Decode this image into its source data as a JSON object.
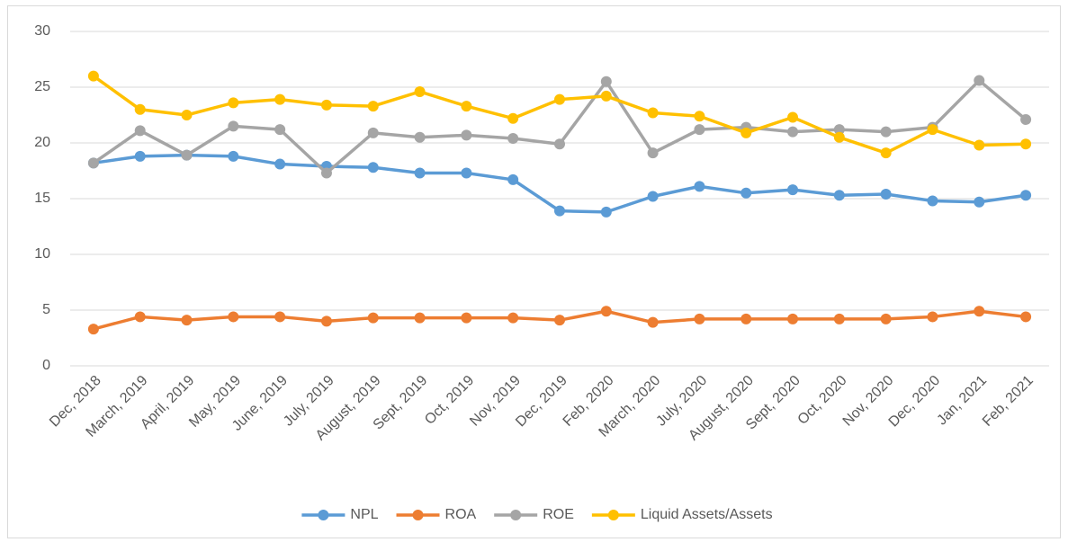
{
  "chart_data": {
    "type": "line",
    "categories": [
      "Dec, 2018",
      "March, 2019",
      "April, 2019",
      "May, 2019",
      "June, 2019",
      "July, 2019",
      "August, 2019",
      "Sept, 2019",
      "Oct, 2019",
      "Nov, 2019",
      "Dec, 2019",
      "Feb, 2020",
      "March, 2020",
      "July, 2020",
      "August, 2020",
      "Sept, 2020",
      "Oct, 2020",
      "Nov, 2020",
      "Dec, 2020",
      "Jan, 2021",
      "Feb, 2021"
    ],
    "series": [
      {
        "name": "NPL",
        "color": "#5b9bd5",
        "values": [
          18.2,
          18.8,
          18.9,
          18.8,
          18.1,
          17.9,
          17.8,
          17.3,
          17.3,
          16.7,
          13.9,
          13.8,
          15.2,
          16.1,
          15.5,
          15.8,
          15.3,
          15.4,
          14.8,
          14.7,
          15.3
        ]
      },
      {
        "name": "ROA",
        "color": "#ed7d31",
        "values": [
          3.3,
          4.4,
          4.1,
          4.4,
          4.4,
          4.0,
          4.3,
          4.3,
          4.3,
          4.3,
          4.1,
          4.9,
          3.9,
          4.2,
          4.2,
          4.2,
          4.2,
          4.2,
          4.4,
          4.9,
          4.4
        ]
      },
      {
        "name": "ROE",
        "color": "#a5a5a5",
        "values": [
          18.2,
          21.1,
          18.9,
          21.5,
          21.2,
          17.3,
          20.9,
          20.5,
          20.7,
          20.4,
          19.9,
          25.5,
          19.1,
          21.2,
          21.4,
          21.0,
          21.2,
          21.0,
          21.4,
          25.6,
          22.1
        ]
      },
      {
        "name": "Liquid Assets/Assets",
        "color": "#ffc000",
        "values": [
          26.0,
          23.0,
          22.5,
          23.6,
          23.9,
          23.4,
          23.3,
          24.6,
          23.3,
          22.2,
          23.9,
          24.2,
          22.7,
          22.4,
          20.9,
          22.3,
          20.5,
          19.1,
          21.2,
          19.8,
          19.9
        ]
      }
    ],
    "ylim": [
      0,
      30
    ],
    "yticks": [
      0,
      5,
      10,
      15,
      20,
      25,
      30
    ],
    "grid": true,
    "legend": "bottom"
  }
}
